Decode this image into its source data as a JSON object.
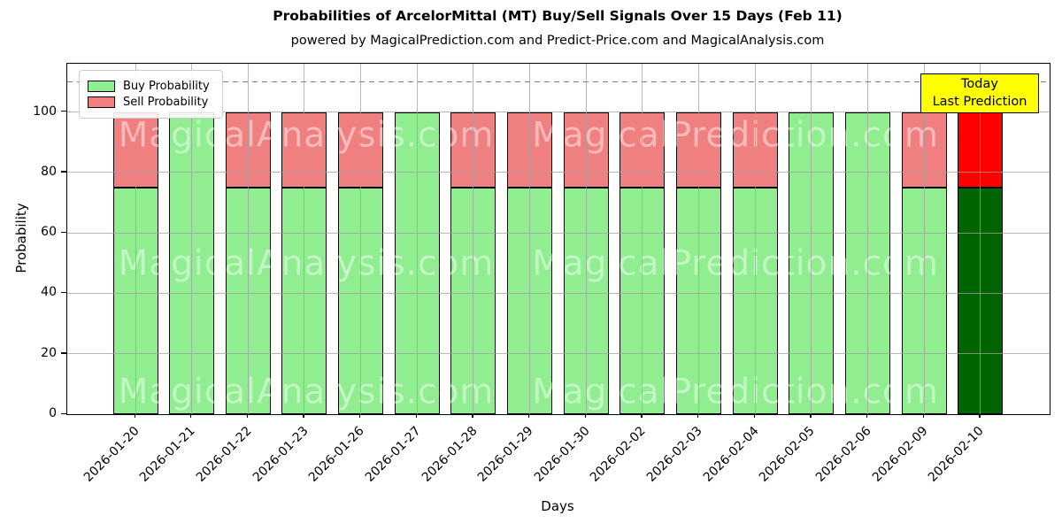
{
  "page": {
    "title": "Probabilities of ArcelorMittal (MT) Buy/Sell Signals Over 15 Days (Feb 11)",
    "subtitle": "powered by MagicalPrediction.com and Predict-Price.com and MagicalAnalysis.com"
  },
  "axes": {
    "xlabel": "Days",
    "ylabel": "Probability",
    "yticks": [
      0,
      20,
      40,
      60,
      80,
      100
    ],
    "ymax": 116,
    "grid": true
  },
  "legend": {
    "position": "upper left",
    "items": [
      {
        "label": "Buy Probability",
        "color": "#90EE90"
      },
      {
        "label": "Sell Probability",
        "color": "#F08080"
      }
    ]
  },
  "annotation": {
    "lines": [
      "Today",
      "Last Prediction"
    ],
    "bg_color": "#FFFF00",
    "border_color": "#000000"
  },
  "watermarks": {
    "left_text": "MagicalAnalysis.com",
    "right_text": "MagicalPrediction.com"
  },
  "chart_data": {
    "type": "bar",
    "stacked": true,
    "title": "Probabilities of ArcelorMittal (MT) Buy/Sell Signals Over 15 Days (Feb 11)",
    "xlabel": "Days",
    "ylabel": "Probability",
    "ylim": [
      0,
      116
    ],
    "yticks": [
      0,
      20,
      40,
      60,
      80,
      100
    ],
    "grid": true,
    "legend_position": "upper left",
    "threshold_line": {
      "y": 110,
      "style": "dashed",
      "color": "#7f7f7f"
    },
    "categories": [
      "2026-01-20",
      "2026-01-21",
      "2026-01-22",
      "2026-01-23",
      "2026-01-26",
      "2026-01-27",
      "2026-01-28",
      "2026-01-29",
      "2026-01-30",
      "2026-02-02",
      "2026-02-03",
      "2026-02-04",
      "2026-02-05",
      "2026-02-06",
      "2026-02-09",
      "2026-02-10"
    ],
    "series": [
      {
        "name": "Buy Probability",
        "color": "#90EE90",
        "values": [
          75,
          100,
          75,
          75,
          75,
          100,
          75,
          75,
          75,
          75,
          75,
          75,
          100,
          100,
          75,
          75
        ]
      },
      {
        "name": "Sell Probability",
        "color": "#F08080",
        "values": [
          25,
          0,
          25,
          25,
          25,
          0,
          25,
          25,
          25,
          25,
          25,
          25,
          0,
          0,
          25,
          25
        ]
      }
    ],
    "highlight": {
      "index": 15,
      "category": "2026-02-10",
      "buy_color": "#006400",
      "sell_color": "#FF0000",
      "annotation": "Today / Last Prediction"
    }
  }
}
